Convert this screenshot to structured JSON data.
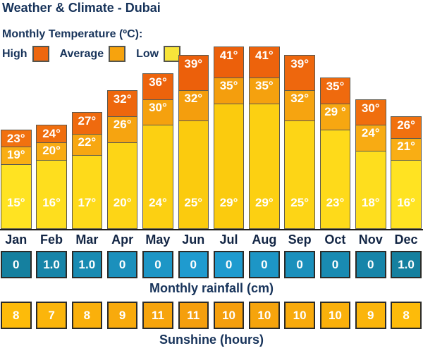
{
  "title": "Weather & Climate - Dubai",
  "legend": {
    "title": "Monthly Temperature (ºC):",
    "items": [
      {
        "label": "High",
        "color": "#ee670f"
      },
      {
        "label": "Average",
        "color": "#f7a30d"
      },
      {
        "label": "Low",
        "color": "#f8e43a"
      }
    ]
  },
  "chart_data": {
    "type": "bar",
    "title": "Monthly Temperature (ºC)",
    "categories": [
      "Jan",
      "Feb",
      "Mar",
      "Apr",
      "May",
      "Jun",
      "Jul",
      "Aug",
      "Sep",
      "Oct",
      "Nov",
      "Dec"
    ],
    "series": [
      {
        "name": "High",
        "values": [
          23,
          24,
          27,
          32,
          36,
          39,
          41,
          41,
          39,
          35,
          30,
          26
        ],
        "labels": [
          "23°",
          "24°",
          "27°",
          "32°",
          "36°",
          "39°",
          "41°",
          "41°",
          "39°",
          "35°",
          "30°",
          "26°"
        ]
      },
      {
        "name": "Average",
        "values": [
          19,
          20,
          22,
          26,
          30,
          32,
          35,
          35,
          32,
          29,
          24,
          21
        ],
        "labels": [
          "19°",
          "20°",
          "22°",
          "26°",
          "30°",
          "32°",
          "35°",
          "35°",
          "32°",
          "29 °",
          "24°",
          "21°"
        ]
      },
      {
        "name": "Low",
        "values": [
          15,
          16,
          17,
          20,
          24,
          25,
          29,
          29,
          25,
          23,
          18,
          16
        ],
        "labels": [
          "15°",
          "16°",
          "17°",
          "20°",
          "24°",
          "25°",
          "29°",
          "29°",
          "25°",
          "23°",
          "18°",
          "16°"
        ]
      }
    ],
    "unit": "°C",
    "ylim": [
      0,
      41
    ]
  },
  "rainfall": {
    "label": "Monthly rainfall (cm)",
    "values": [
      "0",
      "1.0",
      "1.0",
      "0",
      "0",
      "0",
      "0",
      "0",
      "0",
      "0",
      "0",
      "1.0"
    ]
  },
  "sunshine": {
    "label": "Sunshine (hours)",
    "values": [
      "8",
      "7",
      "8",
      "9",
      "11",
      "11",
      "10",
      "10",
      "10",
      "10",
      "9",
      "8"
    ]
  },
  "colors": {
    "high_edge": "#f1710f",
    "high_mid": "#ec5e0b",
    "avg_edge": "#f9ae14",
    "avg_mid": "#f39c0c",
    "low_edge": "#ffe322",
    "low_mid": "#fbc90c",
    "rain_edge": "#15809f",
    "rain_mid": "#209ed4",
    "sun_edge": "#fdbb0a",
    "sun_mid": "#f49c0d",
    "text_navy": "#17335a"
  }
}
